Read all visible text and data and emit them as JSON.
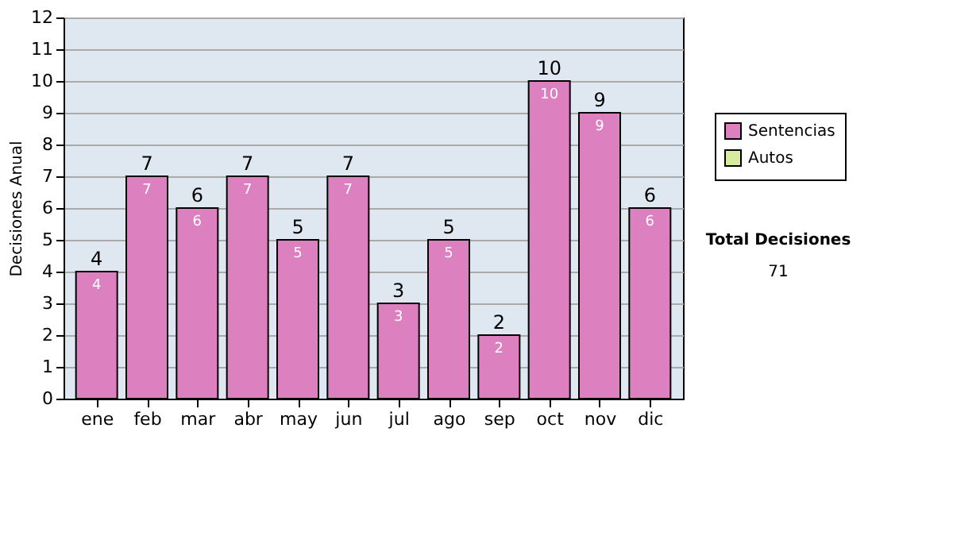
{
  "chart_data": {
    "type": "bar",
    "stacked": true,
    "ylabel": "Decisiones Anual",
    "categories": [
      "ene",
      "feb",
      "mar",
      "abr",
      "may",
      "jun",
      "jul",
      "ago",
      "sep",
      "oct",
      "nov",
      "dic"
    ],
    "series": [
      {
        "name": "Sentencias",
        "color": "#dd80c0",
        "values": [
          4,
          7,
          6,
          7,
          5,
          7,
          3,
          5,
          2,
          10,
          9,
          6
        ],
        "value_labels": [
          "4",
          "7",
          "6",
          "7",
          "5",
          "7",
          "3",
          "5",
          "2",
          "10",
          "9",
          "6"
        ]
      },
      {
        "name": "Autos",
        "color": "#d8eca0",
        "values": [
          0,
          0,
          0,
          0,
          0,
          0,
          0,
          0,
          0,
          0,
          0,
          0
        ]
      }
    ],
    "totals": [
      "4",
      "7",
      "6",
      "7",
      "5",
      "7",
      "3",
      "5",
      "2",
      "10",
      "9",
      "6"
    ],
    "ylim": [
      0,
      12
    ],
    "yticks": [
      0,
      1,
      2,
      3,
      4,
      5,
      6,
      7,
      8,
      9,
      10,
      11,
      12
    ],
    "grid": "y",
    "legend": "right",
    "annotations": [
      "Total Decisiones",
      "71"
    ]
  }
}
